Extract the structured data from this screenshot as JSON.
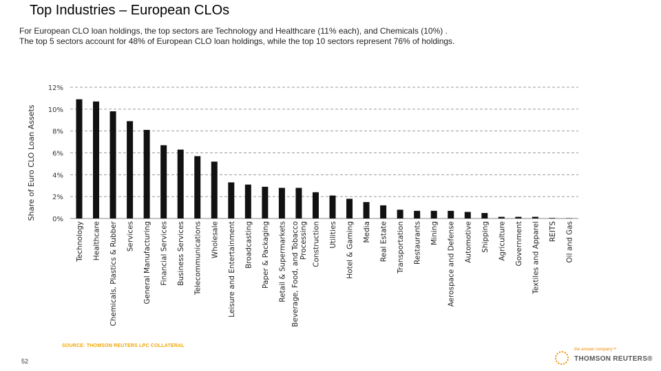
{
  "slide": {
    "title": "Top Industries – European CLOs",
    "subtitle_line1": "For European CLO loan holdings, the top sectors are Technology and Healthcare (11% each), and Chemicals (10%) .",
    "subtitle_line2": "The top 5 sectors account for 48% of European CLO loan holdings, while the top 10 sectors represent 76% of holdings.",
    "source": "SOURCE: THOMSON REUTERS LPC COLLATERAL",
    "page_number": "52",
    "logo_tagline": "the answer company™",
    "logo_name": "THOMSON REUTERS®"
  },
  "colors": {
    "bar": "#111111",
    "grid": "#9a9a9a",
    "axis": "#888888",
    "source": "#f0a500",
    "logo_accent": "#f08a00"
  },
  "chart_data": {
    "type": "bar",
    "title": "",
    "xlabel": "",
    "ylabel": "Share of Euro CLO Loan Assets",
    "ylim": [
      0,
      12
    ],
    "yticks": [
      0,
      2,
      4,
      6,
      8,
      10,
      12
    ],
    "ytick_labels": [
      "0%",
      "2%",
      "4%",
      "6%",
      "8%",
      "10%",
      "12%"
    ],
    "grid": true,
    "categories": [
      [
        "Technology"
      ],
      [
        "Healthcare"
      ],
      [
        "Chemicals, Plastics & Rubber"
      ],
      [
        "Services"
      ],
      [
        "General Manufacturing"
      ],
      [
        "Financial Services"
      ],
      [
        "Business Services"
      ],
      [
        "Telecommunications"
      ],
      [
        "Wholesale"
      ],
      [
        "Leisure and Entertainment"
      ],
      [
        "Broadcasting"
      ],
      [
        "Paper & Packaging"
      ],
      [
        "Retail & Supermarkets"
      ],
      [
        "Beverage, Food, and Tobacco",
        "Processing"
      ],
      [
        "Construction"
      ],
      [
        "Utilities"
      ],
      [
        "Hotel & Gaming"
      ],
      [
        "Media"
      ],
      [
        "Real Estate"
      ],
      [
        "Transportation"
      ],
      [
        "Restaurants"
      ],
      [
        "Mining"
      ],
      [
        "Aerospace and Defense"
      ],
      [
        "Automotive"
      ],
      [
        "Shipping"
      ],
      [
        "Agriculture"
      ],
      [
        "Government"
      ],
      [
        "Textiles and Apparel"
      ],
      [
        "REITS"
      ],
      [
        "Oil and Gas"
      ]
    ],
    "values": [
      10.9,
      10.7,
      9.8,
      8.9,
      8.1,
      6.7,
      6.3,
      5.7,
      5.2,
      3.3,
      3.1,
      2.9,
      2.8,
      2.8,
      2.4,
      2.1,
      1.8,
      1.5,
      1.2,
      0.8,
      0.7,
      0.7,
      0.7,
      0.6,
      0.5,
      0.15,
      0.15,
      0.15,
      0.05,
      0.03
    ]
  }
}
